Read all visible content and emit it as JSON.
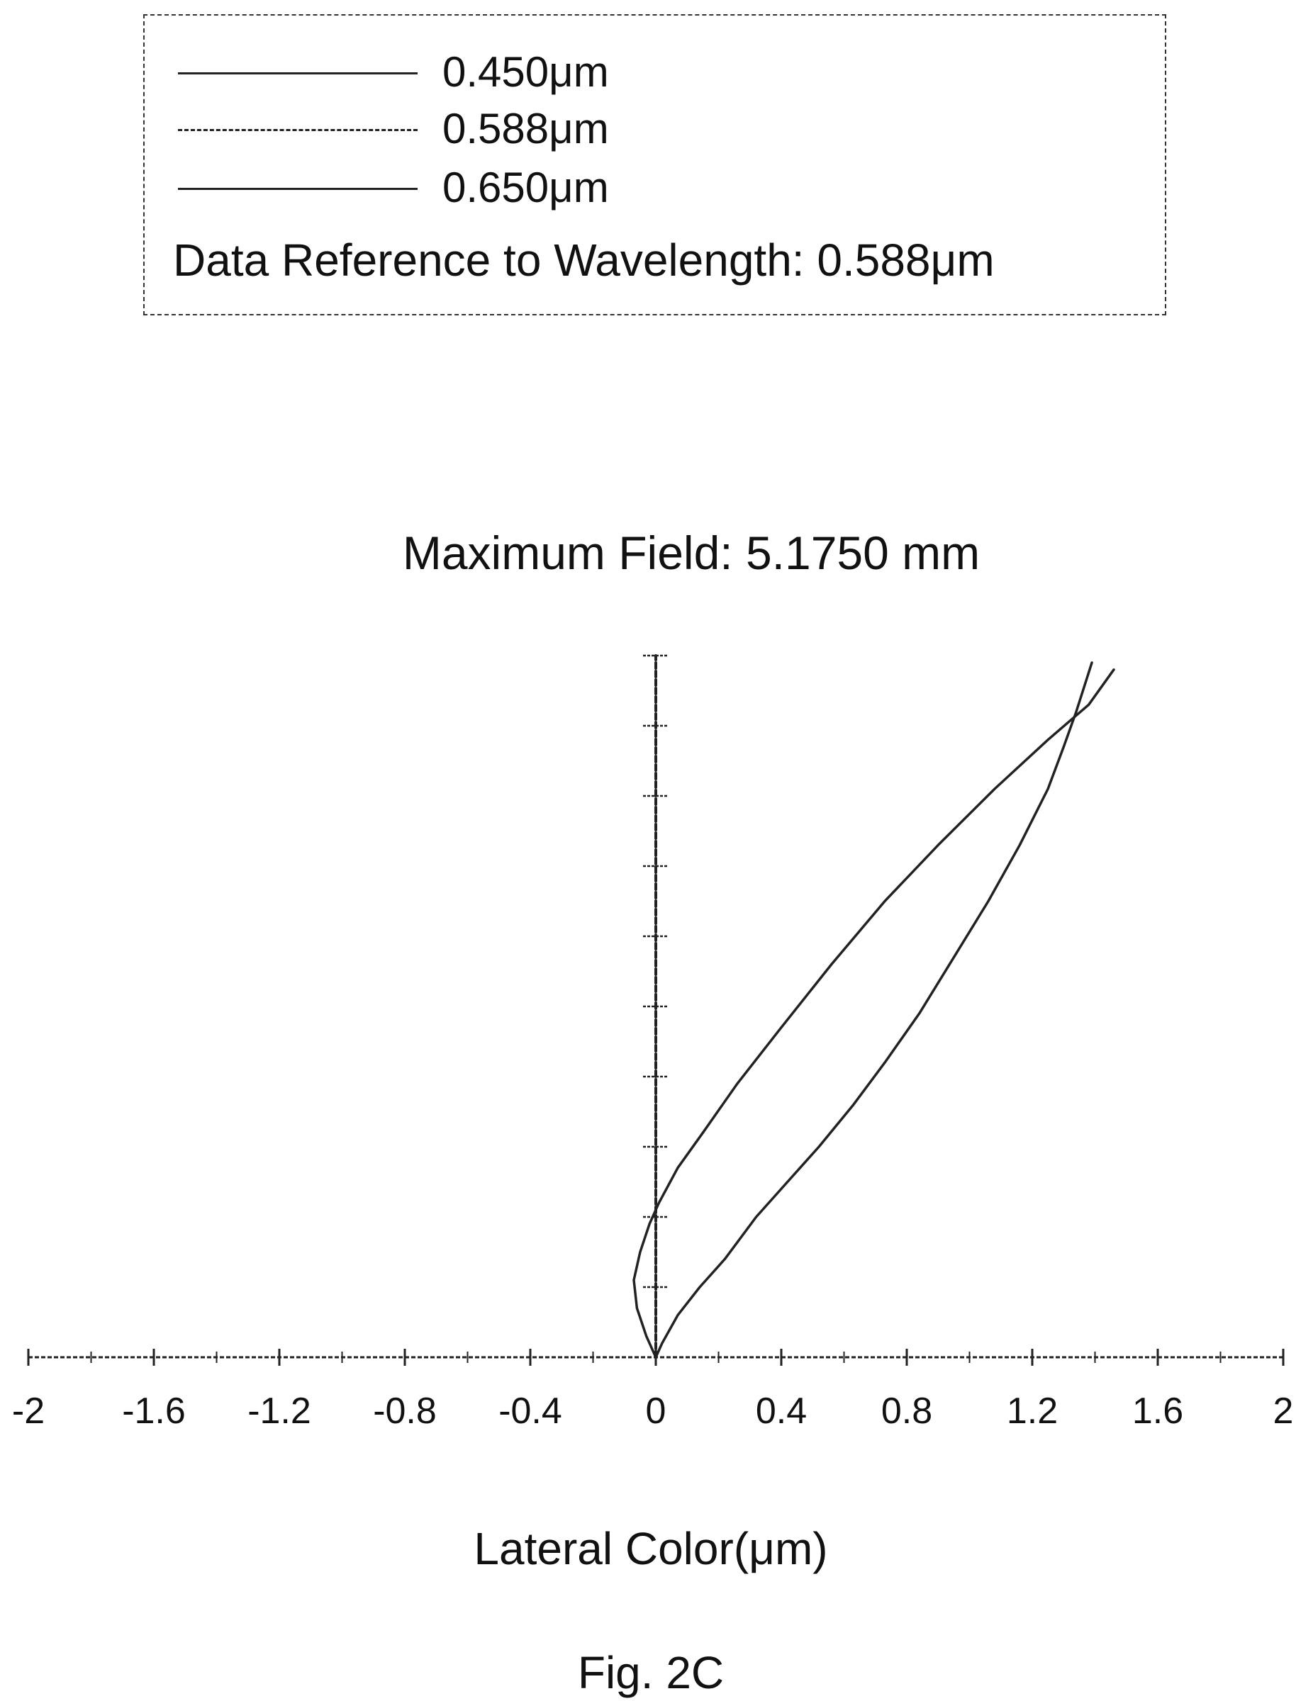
{
  "legend": {
    "entries": [
      {
        "label": "0.450μm",
        "style": "solid"
      },
      {
        "label": "0.588μm",
        "style": "dashed"
      },
      {
        "label": "0.650μm",
        "style": "solid"
      }
    ],
    "reference_text": "Data Reference to Wavelength:  0.588μm"
  },
  "figure_caption": "Fig. 2C",
  "chart_data": {
    "type": "line",
    "title": "Maximum Field:  5.1750 mm",
    "xlabel": "Lateral Color(μm)",
    "ylabel": "",
    "xlim": [
      -2,
      2
    ],
    "ylim": [
      0,
      1
    ],
    "x_ticks": [
      "-2",
      "-1.6",
      "-1.2",
      "-0.8",
      "-0.4",
      "0",
      "0.4",
      "0.8",
      "1.2",
      "1.6",
      "2"
    ],
    "grid": false,
    "legend_position": "top",
    "line_color": "#222222",
    "series": [
      {
        "name": "0.450μm",
        "style": "solid",
        "x": [
          0,
          0.02,
          0.07,
          0.14,
          0.22,
          0.32,
          0.42,
          0.52,
          0.63,
          0.73,
          0.84,
          0.95,
          1.06,
          1.16,
          1.25,
          1.3,
          1.34,
          1.39
        ],
        "y": [
          0,
          0.02,
          0.06,
          0.1,
          0.14,
          0.2,
          0.25,
          0.3,
          0.36,
          0.42,
          0.49,
          0.57,
          0.65,
          0.73,
          0.81,
          0.87,
          0.92,
          0.99
        ]
      },
      {
        "name": "0.588μm",
        "style": "dashed",
        "x": [
          0,
          0,
          0,
          0,
          0,
          0,
          0,
          0,
          0,
          0,
          0
        ],
        "y": [
          0,
          0.1,
          0.2,
          0.3,
          0.4,
          0.5,
          0.6,
          0.7,
          0.8,
          0.9,
          1.0
        ]
      },
      {
        "name": "0.650μm",
        "style": "solid",
        "x": [
          0,
          -0.03,
          -0.06,
          -0.07,
          -0.05,
          -0.02,
          0.01,
          0.07,
          0.15,
          0.26,
          0.4,
          0.56,
          0.73,
          0.9,
          1.08,
          1.25,
          1.38,
          1.46
        ],
        "y": [
          0,
          0.03,
          0.07,
          0.11,
          0.15,
          0.19,
          0.22,
          0.27,
          0.32,
          0.39,
          0.47,
          0.56,
          0.65,
          0.73,
          0.81,
          0.88,
          0.93,
          0.98
        ]
      }
    ]
  }
}
